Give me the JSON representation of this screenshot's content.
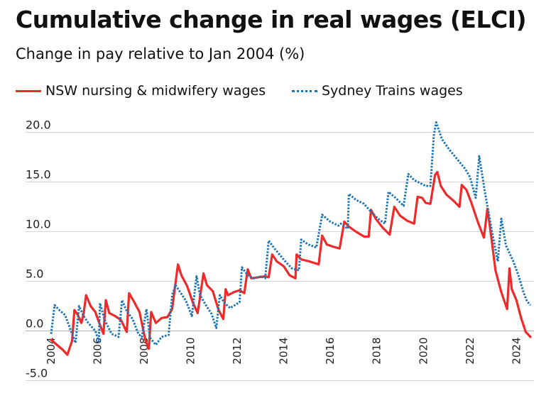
{
  "title": "Cumulative change in real wages (ELCI)",
  "subtitle": "Change in pay relative to Jan 2004 (%)",
  "chart_data": {
    "type": "line",
    "xlim": [
      2004.0,
      2024.6
    ],
    "ylim": [
      -5.0,
      22.0
    ],
    "x_ticks": [
      2004,
      2006,
      2008,
      2010,
      2012,
      2014,
      2016,
      2018,
      2020,
      2022,
      2024
    ],
    "x_tick_labels": [
      "2004",
      "2006",
      "2008",
      "2010",
      "2012",
      "2014",
      "2016",
      "2018",
      "2020",
      "2022",
      "2024"
    ],
    "y_ticks": [
      -5.0,
      0.0,
      5.0,
      10.0,
      15.0,
      20.0
    ],
    "y_tick_labels": [
      "-5.0",
      "0.0",
      "5.0",
      "10.0",
      "15.0",
      "20.0"
    ],
    "grid": "horizontal",
    "legend_position": "top",
    "series": [
      {
        "name": "NSW nursing & midwifery wages",
        "color": "#ee2a2a",
        "style": "solid",
        "points": [
          [
            2004.0,
            -0.9
          ],
          [
            2004.25,
            -1.4
          ],
          [
            2004.5,
            -1.9
          ],
          [
            2004.7,
            -2.4
          ],
          [
            2004.9,
            -1.0
          ],
          [
            2005.0,
            2.1
          ],
          [
            2005.15,
            1.6
          ],
          [
            2005.3,
            0.8
          ],
          [
            2005.4,
            1.8
          ],
          [
            2005.5,
            3.6
          ],
          [
            2005.7,
            2.5
          ],
          [
            2005.9,
            1.9
          ],
          [
            2006.1,
            0.6
          ],
          [
            2006.25,
            -0.3
          ],
          [
            2006.35,
            3.1
          ],
          [
            2006.5,
            1.8
          ],
          [
            2006.75,
            1.5
          ],
          [
            2007.0,
            1.1
          ],
          [
            2007.25,
            -0.1
          ],
          [
            2007.35,
            3.8
          ],
          [
            2007.55,
            3.0
          ],
          [
            2007.8,
            1.9
          ],
          [
            2008.05,
            -0.9
          ],
          [
            2008.2,
            -1.8
          ],
          [
            2008.3,
            1.9
          ],
          [
            2008.5,
            0.8
          ],
          [
            2008.75,
            1.3
          ],
          [
            2009.0,
            1.4
          ],
          [
            2009.2,
            2.2
          ],
          [
            2009.45,
            6.7
          ],
          [
            2009.6,
            5.6
          ],
          [
            2009.85,
            4.5
          ],
          [
            2010.1,
            2.8
          ],
          [
            2010.3,
            1.8
          ],
          [
            2010.55,
            5.8
          ],
          [
            2010.7,
            4.6
          ],
          [
            2010.95,
            4.0
          ],
          [
            2011.2,
            2.1
          ],
          [
            2011.4,
            1.2
          ],
          [
            2011.5,
            4.2
          ],
          [
            2011.6,
            3.6
          ],
          [
            2011.85,
            3.9
          ],
          [
            2012.1,
            4.1
          ],
          [
            2012.3,
            3.8
          ],
          [
            2012.45,
            6.2
          ],
          [
            2012.6,
            5.3
          ],
          [
            2012.9,
            5.4
          ],
          [
            2013.2,
            5.5
          ],
          [
            2013.35,
            5.4
          ],
          [
            2013.5,
            7.7
          ],
          [
            2013.7,
            7.0
          ],
          [
            2014.0,
            6.5
          ],
          [
            2014.25,
            5.6
          ],
          [
            2014.5,
            5.3
          ],
          [
            2014.55,
            7.7
          ],
          [
            2014.75,
            7.2
          ],
          [
            2015.1,
            7.0
          ],
          [
            2015.5,
            6.7
          ],
          [
            2015.65,
            9.6
          ],
          [
            2015.85,
            8.7
          ],
          [
            2016.1,
            8.5
          ],
          [
            2016.4,
            8.3
          ],
          [
            2016.6,
            11.0
          ],
          [
            2016.8,
            10.5
          ],
          [
            2017.1,
            10.0
          ],
          [
            2017.45,
            9.5
          ],
          [
            2017.65,
            9.5
          ],
          [
            2017.75,
            12.2
          ],
          [
            2017.95,
            11.3
          ],
          [
            2018.25,
            10.4
          ],
          [
            2018.55,
            9.7
          ],
          [
            2018.75,
            12.5
          ],
          [
            2019.0,
            11.6
          ],
          [
            2019.3,
            11.1
          ],
          [
            2019.6,
            10.8
          ],
          [
            2019.75,
            13.5
          ],
          [
            2019.95,
            13.4
          ],
          [
            2020.1,
            12.9
          ],
          [
            2020.3,
            12.8
          ],
          [
            2020.5,
            15.7
          ],
          [
            2020.6,
            16.0
          ],
          [
            2020.75,
            14.6
          ],
          [
            2021.0,
            13.7
          ],
          [
            2021.3,
            13.1
          ],
          [
            2021.55,
            12.5
          ],
          [
            2021.65,
            14.7
          ],
          [
            2021.85,
            14.2
          ],
          [
            2022.05,
            13.0
          ],
          [
            2022.35,
            10.9
          ],
          [
            2022.6,
            9.4
          ],
          [
            2022.75,
            12.3
          ],
          [
            2022.9,
            9.8
          ],
          [
            2023.1,
            6.1
          ],
          [
            2023.35,
            3.9
          ],
          [
            2023.6,
            2.2
          ],
          [
            2023.7,
            6.3
          ],
          [
            2023.8,
            4.2
          ],
          [
            2024.0,
            3.1
          ],
          [
            2024.2,
            1.3
          ],
          [
            2024.4,
            -0.1
          ],
          [
            2024.6,
            -0.6
          ]
        ]
      },
      {
        "name": "Sydney Trains wages",
        "color": "#1f74b4",
        "style": "dotted",
        "points": [
          [
            2004.0,
            -0.3
          ],
          [
            2004.15,
            2.6
          ],
          [
            2004.35,
            2.1
          ],
          [
            2004.6,
            1.6
          ],
          [
            2004.9,
            -0.3
          ],
          [
            2005.05,
            -1.2
          ],
          [
            2005.2,
            2.5
          ],
          [
            2005.4,
            1.5
          ],
          [
            2005.6,
            0.8
          ],
          [
            2005.75,
            0.4
          ],
          [
            2005.9,
            0.0
          ],
          [
            2006.05,
            -1.1
          ],
          [
            2006.1,
            2.8
          ],
          [
            2006.3,
            1.1
          ],
          [
            2006.6,
            -0.3
          ],
          [
            2006.9,
            -0.6
          ],
          [
            2007.05,
            3.1
          ],
          [
            2007.25,
            2.0
          ],
          [
            2007.5,
            1.2
          ],
          [
            2007.75,
            -0.3
          ],
          [
            2007.9,
            -0.6
          ],
          [
            2008.1,
            2.2
          ],
          [
            2008.25,
            -0.7
          ],
          [
            2008.5,
            -1.4
          ],
          [
            2008.75,
            -0.6
          ],
          [
            2009.05,
            -0.4
          ],
          [
            2009.2,
            3.6
          ],
          [
            2009.35,
            4.6
          ],
          [
            2009.55,
            3.9
          ],
          [
            2009.8,
            3.0
          ],
          [
            2010.05,
            1.5
          ],
          [
            2010.25,
            5.5
          ],
          [
            2010.4,
            3.6
          ],
          [
            2010.65,
            2.6
          ],
          [
            2010.9,
            1.7
          ],
          [
            2011.1,
            0.3
          ],
          [
            2011.25,
            3.6
          ],
          [
            2011.45,
            2.8
          ],
          [
            2011.7,
            2.3
          ],
          [
            2012.1,
            2.9
          ],
          [
            2012.2,
            6.4
          ],
          [
            2012.45,
            5.6
          ],
          [
            2012.7,
            5.3
          ],
          [
            2013.05,
            5.5
          ],
          [
            2013.2,
            5.3
          ],
          [
            2013.35,
            9.1
          ],
          [
            2013.6,
            8.3
          ],
          [
            2013.85,
            7.6
          ],
          [
            2014.1,
            6.9
          ],
          [
            2014.35,
            6.3
          ],
          [
            2014.65,
            6.1
          ],
          [
            2014.75,
            9.2
          ],
          [
            2015.05,
            8.7
          ],
          [
            2015.4,
            8.4
          ],
          [
            2015.65,
            11.7
          ],
          [
            2016.0,
            11.0
          ],
          [
            2016.35,
            10.6
          ],
          [
            2016.45,
            10.8
          ],
          [
            2016.75,
            10.3
          ],
          [
            2016.8,
            13.8
          ],
          [
            2017.1,
            13.2
          ],
          [
            2017.45,
            12.8
          ],
          [
            2017.75,
            12.0
          ],
          [
            2018.05,
            11.3
          ],
          [
            2018.35,
            10.8
          ],
          [
            2018.5,
            14.0
          ],
          [
            2018.8,
            13.4
          ],
          [
            2019.15,
            12.6
          ],
          [
            2019.35,
            15.8
          ],
          [
            2019.6,
            15.2
          ],
          [
            2020.1,
            14.6
          ],
          [
            2020.3,
            14.6
          ],
          [
            2020.45,
            19.7
          ],
          [
            2020.55,
            21.0
          ],
          [
            2020.8,
            19.3
          ],
          [
            2021.1,
            18.3
          ],
          [
            2021.45,
            17.3
          ],
          [
            2021.8,
            16.3
          ],
          [
            2022.0,
            15.5
          ],
          [
            2022.25,
            13.4
          ],
          [
            2022.4,
            17.6
          ],
          [
            2022.65,
            13.9
          ],
          [
            2022.95,
            10.0
          ],
          [
            2023.2,
            7.0
          ],
          [
            2023.35,
            11.3
          ],
          [
            2023.55,
            8.6
          ],
          [
            2023.85,
            7.1
          ],
          [
            2024.1,
            5.5
          ],
          [
            2024.3,
            3.9
          ],
          [
            2024.45,
            3.0
          ],
          [
            2024.6,
            2.6
          ]
        ]
      }
    ]
  }
}
